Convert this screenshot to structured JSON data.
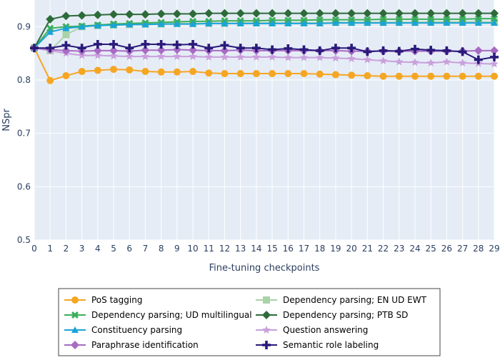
{
  "chart_data": {
    "type": "line",
    "xlabel": "Fine-tuning checkpoints",
    "ylabel": "NSpr",
    "xlim": [
      0,
      29
    ],
    "ylim": [
      0.5,
      0.95
    ],
    "x_ticks": [
      0,
      1,
      2,
      3,
      4,
      5,
      6,
      7,
      8,
      9,
      10,
      11,
      12,
      13,
      14,
      15,
      16,
      17,
      18,
      19,
      20,
      21,
      22,
      23,
      24,
      25,
      26,
      27,
      28,
      29
    ],
    "y_ticks": [
      0.5,
      0.6,
      0.7,
      0.8,
      0.9
    ],
    "y_tick_labels": [
      "0.5",
      "0.6",
      "0.7",
      "0.8",
      "0.9"
    ],
    "grid": true,
    "legend_position": "bottom",
    "plot_background": "#e5ecf6",
    "x": [
      0,
      1,
      2,
      3,
      4,
      5,
      6,
      7,
      8,
      9,
      10,
      11,
      12,
      13,
      14,
      15,
      16,
      17,
      18,
      19,
      20,
      21,
      22,
      23,
      24,
      25,
      26,
      27,
      28,
      29
    ],
    "series": [
      {
        "name": "PoS tagging",
        "color": "#f5a623",
        "marker": "circle",
        "values": [
          0.86,
          0.799,
          0.808,
          0.816,
          0.818,
          0.82,
          0.819,
          0.816,
          0.815,
          0.815,
          0.816,
          0.813,
          0.812,
          0.812,
          0.812,
          0.812,
          0.812,
          0.812,
          0.811,
          0.81,
          0.809,
          0.808,
          0.807,
          0.807,
          0.807,
          0.807,
          0.807,
          0.807,
          0.807,
          0.807
        ]
      },
      {
        "name": "Dependency parsing; EN UD EWT",
        "color": "#a9d3a9",
        "marker": "square",
        "values": [
          0.86,
          0.855,
          0.885,
          0.9,
          0.902,
          0.903,
          0.904,
          0.905,
          0.905,
          0.906,
          0.906,
          0.906,
          0.906,
          0.907,
          0.907,
          0.907,
          0.907,
          0.907,
          0.907,
          0.908,
          0.908,
          0.908,
          0.908,
          0.908,
          0.908,
          0.909,
          0.909,
          0.909,
          0.909,
          0.909
        ]
      },
      {
        "name": "Dependency parsing; UD multilingual",
        "color": "#3dae5c",
        "marker": "x",
        "values": [
          0.86,
          0.897,
          0.9,
          0.901,
          0.903,
          0.905,
          0.906,
          0.907,
          0.908,
          0.909,
          0.91,
          0.91,
          0.911,
          0.911,
          0.911,
          0.912,
          0.912,
          0.912,
          0.913,
          0.913,
          0.913,
          0.913,
          0.914,
          0.914,
          0.914,
          0.914,
          0.914,
          0.914,
          0.915,
          0.915
        ]
      },
      {
        "name": "Dependency parsing; PTB SD",
        "color": "#2e6b3a",
        "marker": "diamond",
        "values": [
          0.86,
          0.914,
          0.92,
          0.921,
          0.922,
          0.923,
          0.923,
          0.923,
          0.924,
          0.924,
          0.924,
          0.925,
          0.925,
          0.925,
          0.925,
          0.925,
          0.925,
          0.925,
          0.925,
          0.925,
          0.925,
          0.925,
          0.925,
          0.925,
          0.925,
          0.925,
          0.925,
          0.925,
          0.925,
          0.925
        ]
      },
      {
        "name": "Constituency parsing",
        "color": "#1ba3d8",
        "marker": "triangle-up",
        "values": [
          0.86,
          0.89,
          0.897,
          0.9,
          0.902,
          0.903,
          0.904,
          0.904,
          0.905,
          0.905,
          0.905,
          0.906,
          0.906,
          0.906,
          0.906,
          0.906,
          0.906,
          0.906,
          0.906,
          0.907,
          0.907,
          0.907,
          0.907,
          0.907,
          0.907,
          0.907,
          0.907,
          0.907,
          0.907,
          0.907
        ]
      },
      {
        "name": "Question answering",
        "color": "#c9a0dc",
        "marker": "star",
        "values": [
          0.86,
          0.855,
          0.85,
          0.846,
          0.846,
          0.845,
          0.844,
          0.844,
          0.844,
          0.844,
          0.844,
          0.843,
          0.843,
          0.843,
          0.843,
          0.843,
          0.842,
          0.842,
          0.842,
          0.841,
          0.84,
          0.838,
          0.836,
          0.834,
          0.833,
          0.832,
          0.834,
          0.832,
          0.831,
          0.83
        ]
      },
      {
        "name": "Paraphrase identification",
        "color": "#a86bc4",
        "marker": "diamond",
        "values": [
          0.86,
          0.857,
          0.855,
          0.854,
          0.855,
          0.855,
          0.854,
          0.856,
          0.856,
          0.857,
          0.856,
          0.855,
          0.855,
          0.856,
          0.855,
          0.855,
          0.855,
          0.855,
          0.855,
          0.855,
          0.854,
          0.854,
          0.854,
          0.854,
          0.854,
          0.854,
          0.854,
          0.854,
          0.855,
          0.855
        ]
      },
      {
        "name": "Semantic role labeling",
        "color": "#2a1a7a",
        "marker": "cross",
        "values": [
          0.86,
          0.86,
          0.865,
          0.86,
          0.867,
          0.867,
          0.86,
          0.867,
          0.867,
          0.866,
          0.867,
          0.86,
          0.865,
          0.86,
          0.86,
          0.857,
          0.859,
          0.857,
          0.855,
          0.86,
          0.86,
          0.853,
          0.855,
          0.854,
          0.858,
          0.856,
          0.855,
          0.853,
          0.838,
          0.843
        ]
      }
    ]
  }
}
